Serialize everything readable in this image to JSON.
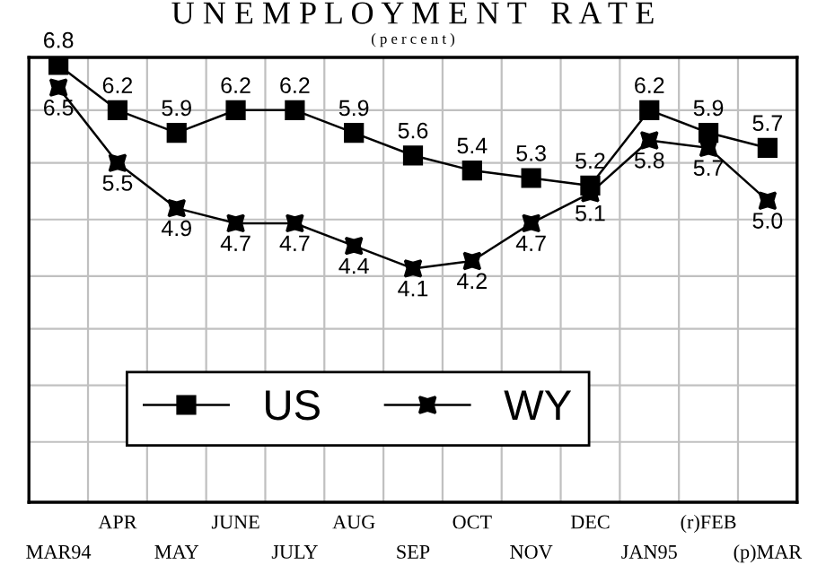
{
  "chart_data": {
    "type": "line",
    "title": "U N E M P L O Y M E N T   R A T E",
    "subtitle": "( p e r c e n t )",
    "categories": [
      "MAR94",
      "APR",
      "MAY",
      "JUNE",
      "JULY",
      "AUG",
      "SEP",
      "OCT",
      "NOV",
      "DEC",
      "JAN95",
      "(r)FEB",
      "(p)MAR"
    ],
    "series": [
      {
        "name": "US",
        "color": "#000000",
        "marker": "square",
        "values": [
          6.8,
          6.2,
          5.9,
          6.2,
          6.2,
          5.9,
          5.6,
          5.4,
          5.3,
          5.2,
          6.2,
          5.9,
          5.7
        ]
      },
      {
        "name": "WY",
        "color": "#000000",
        "marker": "star",
        "values": [
          6.5,
          5.5,
          4.9,
          4.7,
          4.7,
          4.4,
          4.1,
          4.2,
          4.7,
          5.1,
          5.8,
          5.7,
          5.0
        ],
        "value_labels": [
          "6.5",
          "5.5",
          "4.9",
          "4.7",
          "4.7",
          "4.4",
          "4.1",
          "4.2",
          "4.7",
          "5.1",
          "5.8",
          "5.7",
          "5.0"
        ]
      }
    ],
    "ylim": [
      1.0,
      6.9
    ],
    "yticks": [
      {
        "value": 6.2,
        "label": null
      },
      {
        "value": 5.5,
        "label": null
      },
      {
        "value": 4.75,
        "label": null
      },
      {
        "value": 4.0,
        "label": null
      },
      {
        "value": 3.3,
        "label": null
      },
      {
        "value": 2.55,
        "label": null
      },
      {
        "value": 1.8,
        "label": null
      }
    ],
    "tick_labels": "x",
    "grid": true,
    "legend": "bottom left",
    "data_labels": true,
    "line_style": "solid"
  }
}
